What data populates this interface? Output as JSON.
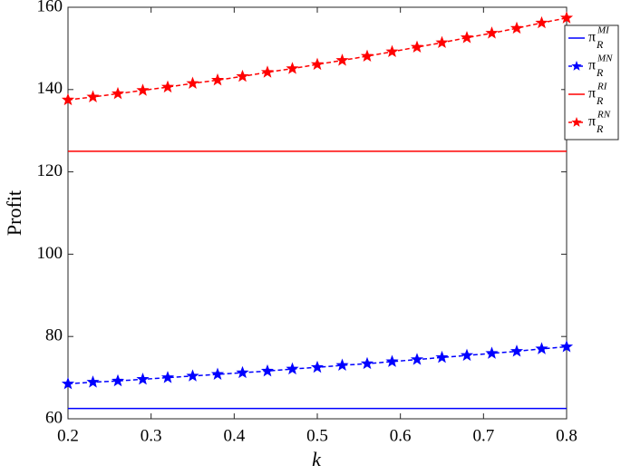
{
  "chart_data": {
    "type": "line",
    "x_label": "k",
    "y_label": "Profit",
    "xlim": [
      0.2,
      0.8
    ],
    "ylim": [
      60,
      160
    ],
    "xticks": [
      0.2,
      0.3,
      0.4,
      0.5,
      0.6,
      0.7,
      0.8
    ],
    "yticks": [
      60,
      80,
      100,
      120,
      140,
      160
    ],
    "grid": false,
    "legend_position": "right",
    "series": [
      {
        "name": "π",
        "subscript": "R",
        "superscript": "MI",
        "color": "#0000ff",
        "style": "solid",
        "marker": "none",
        "x": [
          0.2,
          0.8
        ],
        "values": [
          62.5,
          62.5
        ]
      },
      {
        "name": "π",
        "subscript": "R",
        "superscript": "MN",
        "color": "#0000ff",
        "style": "dashed",
        "marker": "star",
        "x": [
          0.2,
          0.23,
          0.26,
          0.29,
          0.32,
          0.35,
          0.38,
          0.41,
          0.44,
          0.47,
          0.5,
          0.53,
          0.56,
          0.59,
          0.62,
          0.65,
          0.68,
          0.71,
          0.74,
          0.77,
          0.8
        ],
        "values": [
          68.5,
          68.9,
          69.2,
          69.6,
          70.0,
          70.4,
          70.8,
          71.2,
          71.6,
          72.1,
          72.5,
          73.0,
          73.4,
          73.9,
          74.4,
          74.9,
          75.4,
          75.9,
          76.4,
          77.0,
          77.5
        ]
      },
      {
        "name": "π",
        "subscript": "R",
        "superscript": "RI",
        "color": "#ff0000",
        "style": "solid",
        "marker": "none",
        "x": [
          0.2,
          0.8
        ],
        "values": [
          125,
          125
        ]
      },
      {
        "name": "π",
        "subscript": "R",
        "superscript": "RN",
        "color": "#ff0000",
        "style": "dashed",
        "marker": "star",
        "x": [
          0.2,
          0.23,
          0.26,
          0.29,
          0.32,
          0.35,
          0.38,
          0.41,
          0.44,
          0.47,
          0.5,
          0.53,
          0.56,
          0.59,
          0.62,
          0.65,
          0.68,
          0.71,
          0.74,
          0.77,
          0.8
        ],
        "values": [
          137.5,
          138.2,
          139.0,
          139.8,
          140.6,
          141.5,
          142.3,
          143.2,
          144.2,
          145.1,
          146.1,
          147.1,
          148.1,
          149.2,
          150.3,
          151.4,
          152.6,
          153.7,
          154.9,
          156.2,
          157.4
        ]
      }
    ]
  }
}
